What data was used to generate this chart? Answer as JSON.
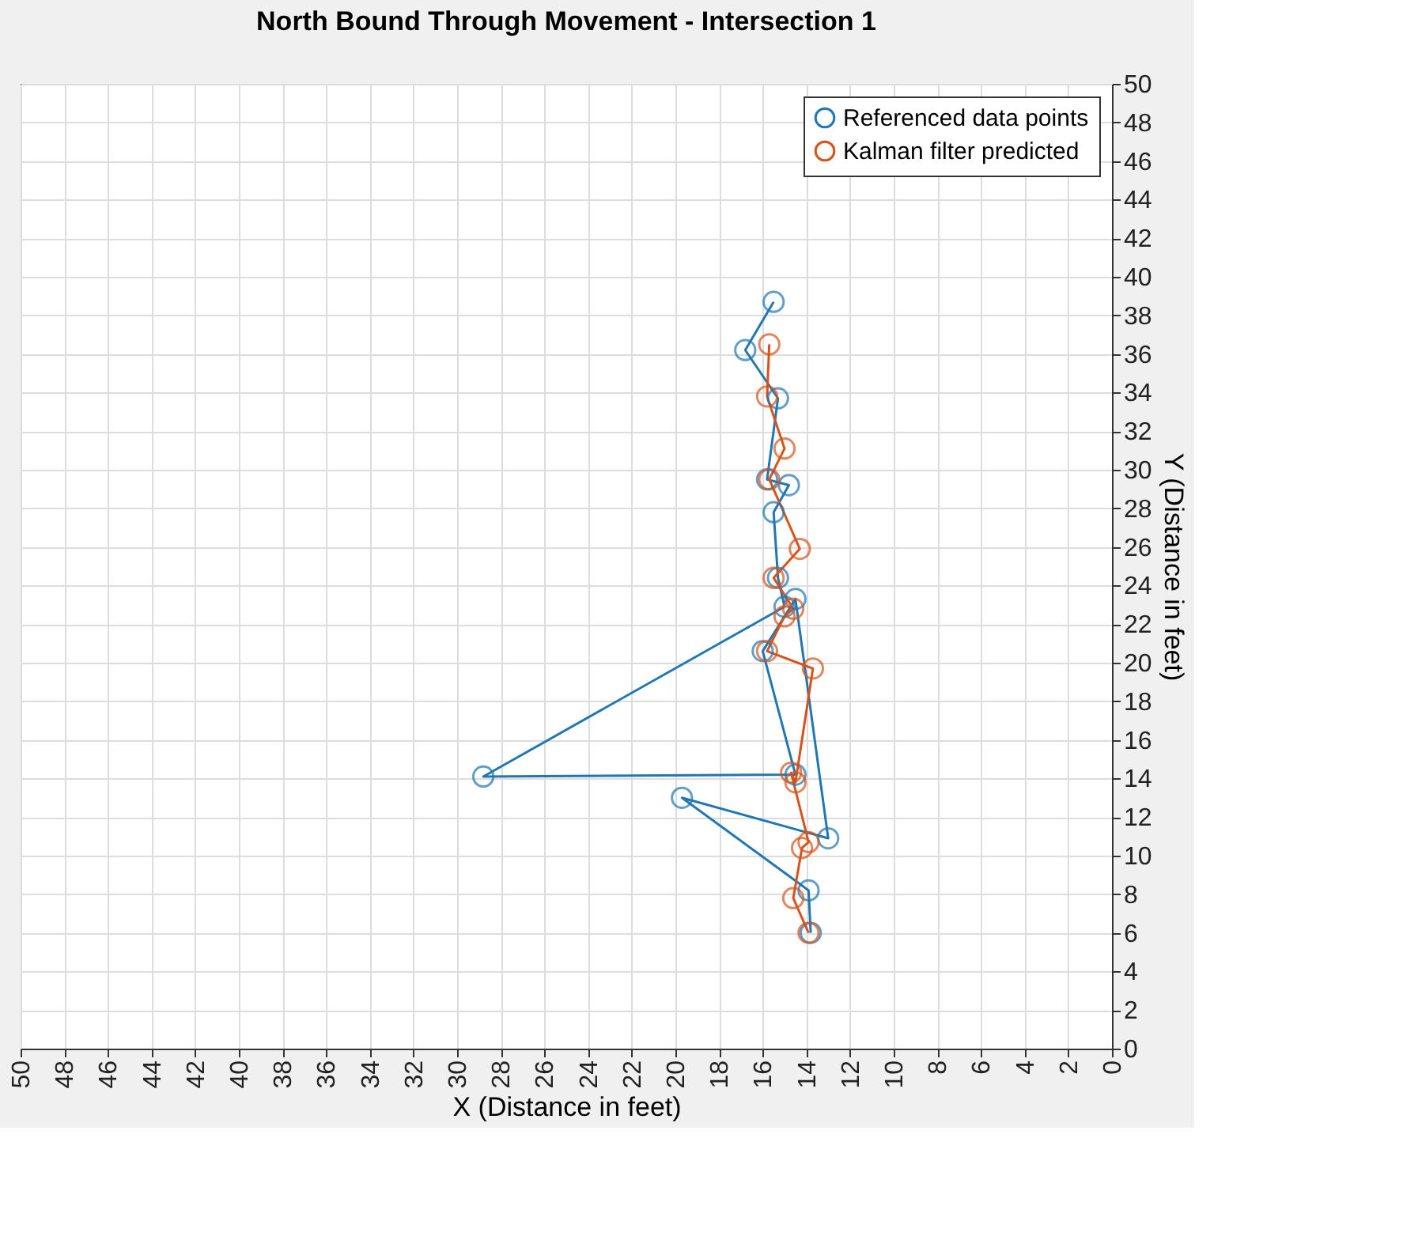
{
  "chart_data": {
    "type": "line",
    "title": "North Bound Through Movement - Intersection 1",
    "xlabel": "X (Distance in feet)",
    "ylabel": "Y (Distance in feet)",
    "xlim": [
      50,
      0
    ],
    "ylim": [
      0,
      50
    ],
    "xticks": [
      50,
      48,
      46,
      44,
      42,
      40,
      38,
      36,
      34,
      32,
      30,
      28,
      26,
      24,
      22,
      20,
      18,
      16,
      14,
      12,
      10,
      8,
      6,
      4,
      2,
      0
    ],
    "yticks": [
      0,
      2,
      4,
      6,
      8,
      10,
      12,
      14,
      16,
      18,
      20,
      22,
      24,
      26,
      28,
      30,
      32,
      34,
      36,
      38,
      40,
      42,
      44,
      46,
      48,
      50
    ],
    "grid": true,
    "legend": "top right",
    "marker": "circle",
    "line_style": "solid",
    "series": [
      {
        "name": "Referenced data points",
        "color": "#1f77b4",
        "x": [
          13.8,
          13.9,
          19.7,
          13.0,
          14.5,
          16.0,
          14.5,
          28.8,
          15.0,
          15.3,
          15.5,
          14.8,
          15.8,
          15.3,
          16.8,
          15.5
        ],
        "values": [
          6.0,
          8.2,
          13.0,
          10.9,
          23.3,
          20.6,
          14.2,
          14.1,
          22.9,
          24.4,
          27.8,
          29.2,
          29.5,
          33.7,
          36.2,
          38.7
        ]
      },
      {
        "name": "Kalman filter predicted",
        "color": "#d95319",
        "x": [
          13.9,
          14.6,
          14.2,
          13.9,
          14.7,
          14.5,
          13.7,
          15.8,
          15.0,
          14.6,
          15.5,
          14.3,
          15.7,
          15.0,
          15.8,
          15.7
        ],
        "values": [
          6.0,
          7.8,
          10.4,
          10.7,
          14.3,
          13.8,
          19.7,
          20.6,
          22.4,
          22.8,
          24.4,
          25.9,
          29.5,
          31.1,
          33.8,
          36.5
        ]
      }
    ]
  }
}
